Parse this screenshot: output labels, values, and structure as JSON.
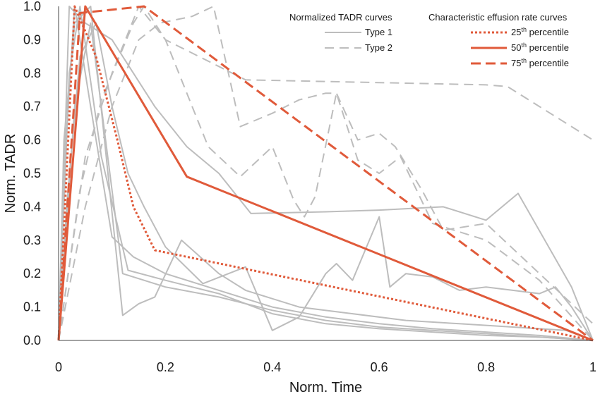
{
  "chart_data": {
    "type": "line",
    "title": "",
    "xlabel": "Norm. Time",
    "ylabel": "Norm. TADR",
    "xlim": [
      0,
      1
    ],
    "ylim": [
      0,
      1
    ],
    "x_ticks": [
      0,
      0.2,
      0.4,
      0.6,
      0.8,
      1
    ],
    "x_tick_labels": [
      "0",
      "0.2",
      "0.4",
      "0.6",
      "0.8",
      "1"
    ],
    "y_ticks": [
      0,
      0.1,
      0.2,
      0.3,
      0.4,
      0.5,
      0.6,
      0.7,
      0.8,
      0.9,
      1.0
    ],
    "y_tick_labels": [
      "0.0",
      "0.1",
      "0.2",
      "0.3",
      "0.4",
      "0.5",
      "0.6",
      "0.7",
      "0.8",
      "0.9",
      "1.0"
    ],
    "grid": false,
    "legend_placement": "top-right",
    "colors": {
      "type_curves": "#bdbdbd",
      "percentile_curves": "#e05a3a"
    },
    "legend": {
      "group1": {
        "title": "Normalized TADR curves",
        "entries": [
          {
            "name": "Type 1",
            "style": "solid",
            "color": "#bdbdbd"
          },
          {
            "name": "Type 2",
            "style": "dashed",
            "color": "#bdbdbd"
          }
        ]
      },
      "group2": {
        "title": "Characteristic effusion rate curves",
        "entries": [
          {
            "prefix": "25",
            "sup": "th",
            "suffix": " percentile",
            "style": "dotted",
            "color": "#e05a3a"
          },
          {
            "prefix": "50",
            "sup": "th",
            "suffix": " percentile",
            "style": "solid",
            "color": "#e05a3a"
          },
          {
            "prefix": "75",
            "sup": "th",
            "suffix": " percentile",
            "style": "longdash",
            "color": "#e05a3a"
          }
        ]
      }
    },
    "series": [
      {
        "group": "Type 1",
        "style": "solid",
        "color": "#bdbdbd",
        "x": [
          0,
          0.02,
          0.05,
          0.1,
          0.14,
          0.18,
          0.24,
          0.3,
          0.36,
          0.5,
          0.6,
          0.72,
          0.8,
          0.86,
          0.96,
          1
        ],
        "y": [
          0,
          1.0,
          0.95,
          0.9,
          0.8,
          0.7,
          0.58,
          0.5,
          0.38,
          0.385,
          0.39,
          0.4,
          0.36,
          0.44,
          0.16,
          0
        ]
      },
      {
        "group": "Type 1",
        "style": "solid",
        "color": "#bdbdbd",
        "x": [
          0,
          0.01,
          0.03,
          0.06,
          0.12,
          0.15,
          0.18,
          0.23,
          0.3,
          0.35,
          0.45,
          0.55,
          0.65,
          0.75,
          0.85,
          0.95,
          1
        ],
        "y": [
          0,
          0.6,
          0.95,
          1.0,
          0.075,
          0.11,
          0.13,
          0.3,
          0.2,
          0.15,
          0.1,
          0.08,
          0.06,
          0.05,
          0.04,
          0.03,
          0
        ]
      },
      {
        "group": "Type 1",
        "style": "solid",
        "color": "#bdbdbd",
        "x": [
          0,
          0.015,
          0.04,
          0.07,
          0.1,
          0.13,
          0.16,
          0.2,
          0.27,
          0.35,
          0.4,
          0.45,
          0.5,
          0.52,
          0.55,
          0.6,
          0.62,
          0.65,
          0.7,
          0.75,
          0.8,
          0.85,
          0.9,
          0.93,
          0.96,
          1
        ],
        "y": [
          0,
          0.4,
          0.85,
          0.95,
          0.7,
          0.5,
          0.4,
          0.28,
          0.17,
          0.22,
          0.03,
          0.07,
          0.2,
          0.23,
          0.18,
          0.37,
          0.16,
          0.2,
          0.19,
          0.15,
          0.16,
          0.15,
          0.14,
          0.16,
          0.1,
          0
        ]
      },
      {
        "group": "Type 1",
        "style": "solid",
        "color": "#bdbdbd",
        "x": [
          0,
          0.01,
          0.03,
          0.06,
          0.1,
          0.14,
          0.2,
          0.3,
          0.4,
          0.5,
          0.6,
          0.7,
          0.8,
          0.9,
          1
        ],
        "y": [
          0,
          0.5,
          1.0,
          0.7,
          0.31,
          0.25,
          0.2,
          0.15,
          0.1,
          0.07,
          0.05,
          0.035,
          0.025,
          0.015,
          0
        ]
      },
      {
        "group": "Type 1",
        "style": "solid",
        "color": "#bdbdbd",
        "x": [
          0,
          0.02,
          0.04,
          0.08,
          0.13,
          0.2,
          0.3,
          0.4,
          0.5,
          0.6,
          0.7,
          0.8,
          0.9,
          1
        ],
        "y": [
          0,
          0.8,
          1.0,
          0.55,
          0.21,
          0.18,
          0.14,
          0.08,
          0.05,
          0.035,
          0.025,
          0.015,
          0.01,
          0
        ]
      },
      {
        "group": "Type 1",
        "style": "solid",
        "color": "#bdbdbd",
        "x": [
          0,
          0.03,
          0.06,
          0.12,
          0.2,
          0.3,
          0.4,
          0.5,
          0.6,
          0.7,
          0.8,
          0.9,
          1
        ],
        "y": [
          0,
          0.7,
          0.95,
          0.2,
          0.16,
          0.13,
          0.09,
          0.06,
          0.04,
          0.03,
          0.02,
          0.01,
          0
        ]
      },
      {
        "group": "Type 2",
        "style": "dashed",
        "color": "#bdbdbd",
        "x": [
          0,
          0.05,
          0.1,
          0.15,
          0.2,
          0.3,
          0.35,
          0.5,
          0.65,
          0.8,
          0.84,
          1
        ],
        "y": [
          0,
          0.55,
          0.8,
          1.0,
          0.9,
          0.82,
          0.78,
          0.775,
          0.77,
          0.765,
          0.76,
          0.6
        ]
      },
      {
        "group": "Type 2",
        "style": "dashed",
        "color": "#bdbdbd",
        "x": [
          0,
          0.04,
          0.08,
          0.14,
          0.16,
          0.2,
          0.28,
          0.34,
          0.4,
          0.44,
          0.46,
          0.48,
          0.52,
          0.56,
          0.6,
          0.64,
          0.7,
          0.8,
          0.9,
          1
        ],
        "y": [
          0,
          0.45,
          0.72,
          0.95,
          1.0,
          0.9,
          0.58,
          0.49,
          0.58,
          0.42,
          0.37,
          0.43,
          0.74,
          0.54,
          0.5,
          0.55,
          0.35,
          0.3,
          0.18,
          0
        ]
      },
      {
        "group": "Type 2",
        "style": "dashed",
        "color": "#bdbdbd",
        "x": [
          0,
          0.05,
          0.1,
          0.15,
          0.19,
          0.25,
          0.29,
          0.34,
          0.4,
          0.45,
          0.5,
          0.52,
          0.56,
          0.6,
          0.63,
          0.68,
          0.72,
          0.8,
          0.9,
          1
        ],
        "y": [
          0,
          0.4,
          0.7,
          0.9,
          0.95,
          0.97,
          1.0,
          0.64,
          0.68,
          0.72,
          0.74,
          0.74,
          0.6,
          0.62,
          0.58,
          0.45,
          0.33,
          0.35,
          0.2,
          0.05
        ]
      },
      {
        "group": "25th percentile",
        "style": "dotted",
        "color": "#e05a3a",
        "x": [
          0,
          0.03,
          0.07,
          0.11,
          0.14,
          0.18,
          1
        ],
        "y": [
          0,
          1.0,
          0.85,
          0.6,
          0.4,
          0.27,
          0
        ]
      },
      {
        "group": "50th percentile",
        "style": "solid",
        "color": "#e05a3a",
        "x": [
          0,
          0.05,
          0.24,
          1
        ],
        "y": [
          0,
          1.0,
          0.49,
          0
        ]
      },
      {
        "group": "75th percentile",
        "style": "longdash",
        "color": "#e05a3a",
        "x": [
          0,
          0.04,
          0.16,
          1
        ],
        "y": [
          0,
          0.98,
          1.0,
          0
        ]
      }
    ]
  }
}
